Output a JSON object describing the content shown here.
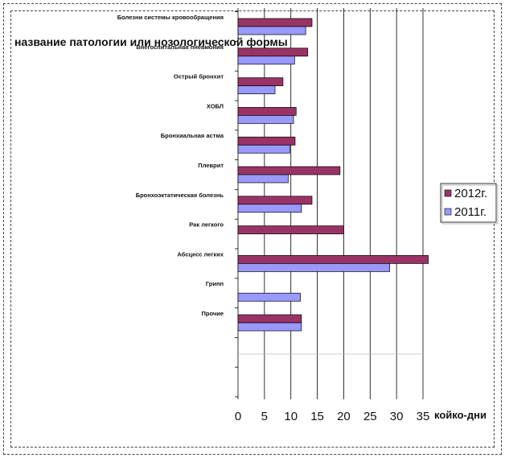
{
  "chart_data": {
    "type": "bar",
    "orientation": "horizontal",
    "overlay_title": "название патологии или нозологической формы",
    "xlabel": "койко-дни",
    "xlim": [
      0,
      35
    ],
    "xticks": [
      "0",
      "5",
      "10",
      "15",
      "20",
      "25",
      "30",
      "35"
    ],
    "grid": true,
    "legend_position": "right",
    "categories": [
      "Болезни системы кровообращения",
      "Внегоспитальная пневмония",
      "Острый бронхит",
      "ХОБЛ",
      "Бронхиальная астма",
      "Плеврит",
      "Бронхоэктатическая болезнь",
      "Рак легкого",
      "Абсцесс легких",
      "Грипп",
      "Прочие"
    ],
    "series": [
      {
        "name": "2012г.",
        "color": "#993366",
        "values": [
          14,
          13.2,
          8.5,
          11,
          10.8,
          19.3,
          14,
          20,
          36,
          null,
          12
        ]
      },
      {
        "name": "2011г.",
        "color": "#9999FF",
        "values": [
          12.8,
          10.7,
          7,
          10.5,
          9.8,
          9.5,
          12,
          null,
          28.7,
          11.8,
          12
        ]
      }
    ]
  }
}
